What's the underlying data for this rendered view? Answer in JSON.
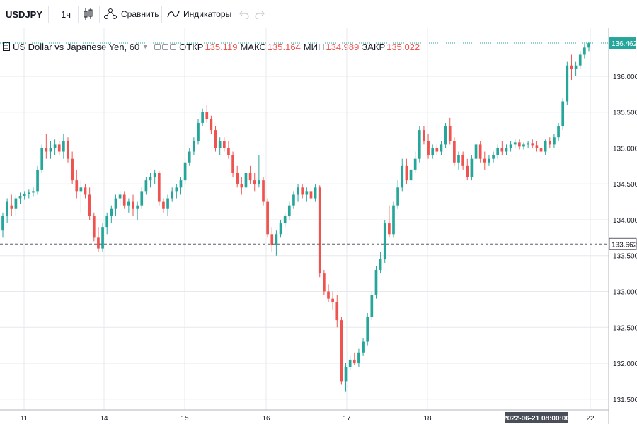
{
  "toolbar": {
    "symbol": "USDJPY",
    "interval": "1ч",
    "compare_label": "Сравнить",
    "indicators_label": "Индикаторы",
    "undo_icon": "undo-icon",
    "redo_icon": "redo-icon"
  },
  "legend": {
    "menu_icon": "menu-icon",
    "title": "US Dollar vs Japanese Yen, 60",
    "open_label": "ОТКР",
    "open_value": "135.119",
    "high_label": "МАКС",
    "high_value": "135.164",
    "low_label": "МИН",
    "low_value": "134.989",
    "close_label": "ЗАКР",
    "close_value": "135.022"
  },
  "colors": {
    "up": "#26a69a",
    "down": "#ef5350",
    "grid": "#e6e8ed",
    "axis_text": "#131722"
  },
  "chart_data": {
    "type": "candlestick",
    "title": "US Dollar vs Japanese Yen, 60",
    "x_ticks": [
      "11",
      "14",
      "15",
      "16",
      "17",
      "18",
      "22"
    ],
    "y_ticks": [
      "131.500",
      "132.000",
      "132.500",
      "133.000",
      "133.500",
      "134.000",
      "134.500",
      "135.000",
      "135.500",
      "136.000"
    ],
    "ylim": [
      131.35,
      136.62
    ],
    "last_price_label": "136.462",
    "horizontal_line_label": "133.662",
    "crosshair_time_label": "2022-06-21 08:00:00",
    "grid": true,
    "candles": [
      [
        133.85,
        134.1,
        133.75,
        134.05
      ],
      [
        134.05,
        134.3,
        133.95,
        134.25
      ],
      [
        134.2,
        134.35,
        134.05,
        134.15
      ],
      [
        134.15,
        134.35,
        134.05,
        134.3
      ],
      [
        134.3,
        134.38,
        134.22,
        134.33
      ],
      [
        134.33,
        134.4,
        134.28,
        134.36
      ],
      [
        134.36,
        134.42,
        134.3,
        134.38
      ],
      [
        134.38,
        134.45,
        134.32,
        134.4
      ],
      [
        134.4,
        134.75,
        134.35,
        134.7
      ],
      [
        134.7,
        135.05,
        134.65,
        135.0
      ],
      [
        135.0,
        135.2,
        134.85,
        134.95
      ],
      [
        134.95,
        135.1,
        134.85,
        135.0
      ],
      [
        135.0,
        135.12,
        134.9,
        135.05
      ],
      [
        135.05,
        135.1,
        134.9,
        134.95
      ],
      [
        134.95,
        135.2,
        134.85,
        135.1
      ],
      [
        135.1,
        135.15,
        134.8,
        134.85
      ],
      [
        134.85,
        134.95,
        134.5,
        134.55
      ],
      [
        134.55,
        134.7,
        134.3,
        134.4
      ],
      [
        134.4,
        134.55,
        134.1,
        134.45
      ],
      [
        134.45,
        134.5,
        134.3,
        134.35
      ],
      [
        134.35,
        134.45,
        134.0,
        134.05
      ],
      [
        134.05,
        134.1,
        133.7,
        133.75
      ],
      [
        133.75,
        133.9,
        133.55,
        133.6
      ],
      [
        133.6,
        133.95,
        133.55,
        133.9
      ],
      [
        133.9,
        134.1,
        133.8,
        134.05
      ],
      [
        134.05,
        134.2,
        133.95,
        134.15
      ],
      [
        134.15,
        134.35,
        134.05,
        134.3
      ],
      [
        134.3,
        134.4,
        134.2,
        134.35
      ],
      [
        134.35,
        134.4,
        134.15,
        134.2
      ],
      [
        134.2,
        134.3,
        134.1,
        134.25
      ],
      [
        134.25,
        134.35,
        134.05,
        134.15
      ],
      [
        134.15,
        134.25,
        134.0,
        134.2
      ],
      [
        134.2,
        134.45,
        134.15,
        134.4
      ],
      [
        134.4,
        134.6,
        134.35,
        134.55
      ],
      [
        134.55,
        134.65,
        134.45,
        134.6
      ],
      [
        134.6,
        134.7,
        134.5,
        134.65
      ],
      [
        134.65,
        134.68,
        134.2,
        134.25
      ],
      [
        134.25,
        134.3,
        134.1,
        134.15
      ],
      [
        134.15,
        134.35,
        134.05,
        134.3
      ],
      [
        134.3,
        134.45,
        134.25,
        134.4
      ],
      [
        134.4,
        134.5,
        134.3,
        134.45
      ],
      [
        134.45,
        134.6,
        134.35,
        134.55
      ],
      [
        134.55,
        134.85,
        134.5,
        134.8
      ],
      [
        134.8,
        135.0,
        134.75,
        134.95
      ],
      [
        134.95,
        135.15,
        134.9,
        135.1
      ],
      [
        135.1,
        135.4,
        135.05,
        135.35
      ],
      [
        135.35,
        135.55,
        135.3,
        135.5
      ],
      [
        135.5,
        135.6,
        135.35,
        135.4
      ],
      [
        135.4,
        135.45,
        135.2,
        135.25
      ],
      [
        135.25,
        135.3,
        134.95,
        135.0
      ],
      [
        135.0,
        135.15,
        134.9,
        135.1
      ],
      [
        135.1,
        135.15,
        134.95,
        135.0
      ],
      [
        135.0,
        135.1,
        134.85,
        134.9
      ],
      [
        134.9,
        134.95,
        134.6,
        134.65
      ],
      [
        134.65,
        134.75,
        134.45,
        134.5
      ],
      [
        134.5,
        134.6,
        134.35,
        134.45
      ],
      [
        134.45,
        134.7,
        134.4,
        134.65
      ],
      [
        134.65,
        134.75,
        134.5,
        134.55
      ],
      [
        134.55,
        134.65,
        134.4,
        134.5
      ],
      [
        134.5,
        134.9,
        134.45,
        134.55
      ],
      [
        134.55,
        134.6,
        134.2,
        134.25
      ],
      [
        134.25,
        134.3,
        133.75,
        133.8
      ],
      [
        133.8,
        133.9,
        133.55,
        133.65
      ],
      [
        133.65,
        133.85,
        133.5,
        133.8
      ],
      [
        133.8,
        134.0,
        133.75,
        133.95
      ],
      [
        133.95,
        134.1,
        133.9,
        134.05
      ],
      [
        134.05,
        134.25,
        134.0,
        134.2
      ],
      [
        134.2,
        134.4,
        134.15,
        134.35
      ],
      [
        134.35,
        134.5,
        134.25,
        134.45
      ],
      [
        134.45,
        134.5,
        134.3,
        134.35
      ],
      [
        134.35,
        134.45,
        134.25,
        134.4
      ],
      [
        134.4,
        134.45,
        134.25,
        134.3
      ],
      [
        134.3,
        134.5,
        134.25,
        134.45
      ],
      [
        134.45,
        134.48,
        133.2,
        133.25
      ],
      [
        133.25,
        133.3,
        132.95,
        133.0
      ],
      [
        133.0,
        133.1,
        132.85,
        132.9
      ],
      [
        132.9,
        133.0,
        132.75,
        132.85
      ],
      [
        132.85,
        132.95,
        132.5,
        132.6
      ],
      [
        132.6,
        132.65,
        131.7,
        131.75
      ],
      [
        131.75,
        132.0,
        131.6,
        131.95
      ],
      [
        131.95,
        132.1,
        131.9,
        132.05
      ],
      [
        132.05,
        132.15,
        131.98,
        132.0
      ],
      [
        132.0,
        132.2,
        131.95,
        132.15
      ],
      [
        132.15,
        132.35,
        132.1,
        132.3
      ],
      [
        132.3,
        132.7,
        132.25,
        132.65
      ],
      [
        132.65,
        133.0,
        132.6,
        132.95
      ],
      [
        132.95,
        133.35,
        132.9,
        133.3
      ],
      [
        133.3,
        133.55,
        133.25,
        133.45
      ],
      [
        133.45,
        134.0,
        133.4,
        133.95
      ],
      [
        133.95,
        134.2,
        133.75,
        133.8
      ],
      [
        133.8,
        134.25,
        133.75,
        134.2
      ],
      [
        134.2,
        134.55,
        134.15,
        134.45
      ],
      [
        134.45,
        134.85,
        134.4,
        134.75
      ],
      [
        134.75,
        134.85,
        134.5,
        134.55
      ],
      [
        134.55,
        134.8,
        134.45,
        134.7
      ],
      [
        134.7,
        134.95,
        134.65,
        134.85
      ],
      [
        134.85,
        135.3,
        134.8,
        135.25
      ],
      [
        135.25,
        135.3,
        135.05,
        135.1
      ],
      [
        135.1,
        135.2,
        134.85,
        134.9
      ],
      [
        134.9,
        135.05,
        134.85,
        135.0
      ],
      [
        135.0,
        135.05,
        134.9,
        134.95
      ],
      [
        134.95,
        135.1,
        134.9,
        135.05
      ],
      [
        135.05,
        135.35,
        135.0,
        135.3
      ],
      [
        135.3,
        135.42,
        135.05,
        135.1
      ],
      [
        135.1,
        135.15,
        134.75,
        134.8
      ],
      [
        134.8,
        134.95,
        134.7,
        134.9
      ],
      [
        134.9,
        134.95,
        134.7,
        134.75
      ],
      [
        134.75,
        134.85,
        134.55,
        134.6
      ],
      [
        134.6,
        134.9,
        134.55,
        134.85
      ],
      [
        134.85,
        135.1,
        134.8,
        135.05
      ],
      [
        135.05,
        135.1,
        134.8,
        134.85
      ],
      [
        134.85,
        134.95,
        134.7,
        134.8
      ],
      [
        134.8,
        134.9,
        134.75,
        134.85
      ],
      [
        134.85,
        134.95,
        134.8,
        134.9
      ],
      [
        134.9,
        135.05,
        134.85,
        135.0
      ],
      [
        135.0,
        135.1,
        134.9,
        134.95
      ],
      [
        134.95,
        135.05,
        134.9,
        135.0
      ],
      [
        135.0,
        135.1,
        134.95,
        135.05
      ],
      [
        135.05,
        135.12,
        135.0,
        135.08
      ],
      [
        135.08,
        135.12,
        134.98,
        135.02
      ],
      [
        135.02,
        135.08,
        134.98,
        135.05
      ],
      [
        135.05,
        135.1,
        135.0,
        135.06
      ],
      [
        135.06,
        135.12,
        135.0,
        135.04
      ],
      [
        135.04,
        135.1,
        134.95,
        135.0
      ],
      [
        135.0,
        135.05,
        134.9,
        134.95
      ],
      [
        134.95,
        135.12,
        134.9,
        135.1
      ],
      [
        135.1,
        135.15,
        135.0,
        135.05
      ],
      [
        135.05,
        135.2,
        135.0,
        135.15
      ],
      [
        135.15,
        135.35,
        135.1,
        135.3
      ],
      [
        135.3,
        135.7,
        135.25,
        135.65
      ],
      [
        135.65,
        136.2,
        135.6,
        136.15
      ],
      [
        136.15,
        136.3,
        135.95,
        136.1
      ],
      [
        136.1,
        136.2,
        136.0,
        136.15
      ],
      [
        136.15,
        136.35,
        136.1,
        136.3
      ],
      [
        136.3,
        136.45,
        136.25,
        136.4
      ],
      [
        136.4,
        136.48,
        136.35,
        136.46
      ]
    ]
  }
}
